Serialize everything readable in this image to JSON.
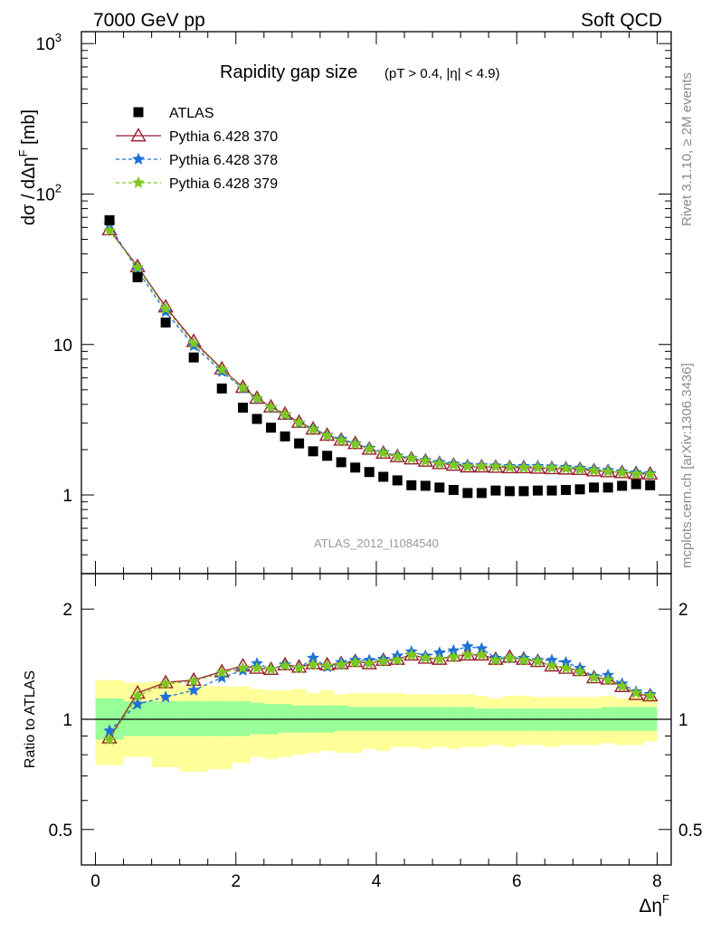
{
  "header": {
    "left": "7000 GeV pp",
    "right": "Soft QCD"
  },
  "side_labels": {
    "rivet": "Rivet 3.1.10, ≥ 2M events",
    "mcplots": "mcplots.cern.ch [arXiv:1306.3436]"
  },
  "chart_data": [
    {
      "type": "scatter",
      "title": "Rapidity gap size",
      "subtitle": "(pT > 0.4, |η| < 4.9)",
      "watermark": "ATLAS_2012_I1084540",
      "xlabel": "Δη",
      "xlabel_sup": "F",
      "ylabel": "dσ / dΔη",
      "ylabel_sup": "F",
      "ylabel_unit": " [mb]",
      "xlim": [
        -0.2,
        8.2
      ],
      "ylim": [
        0.3,
        1200
      ],
      "yscale": "log",
      "xticks": [
        "0",
        "2",
        "4",
        "6",
        "8"
      ],
      "yticks": [
        "1",
        "10"
      ],
      "yticks_pow": [
        {
          "base": "10",
          "exp": "2"
        },
        {
          "base": "10",
          "exp": "3"
        }
      ],
      "legend_position": "top-left",
      "grid": false,
      "x": [
        0.2,
        0.6,
        1.0,
        1.4,
        1.8,
        2.1,
        2.3,
        2.5,
        2.7,
        2.9,
        3.1,
        3.3,
        3.5,
        3.7,
        3.9,
        4.1,
        4.3,
        4.5,
        4.7,
        4.9,
        5.1,
        5.3,
        5.5,
        5.7,
        5.9,
        6.1,
        6.3,
        6.5,
        6.7,
        6.9,
        7.1,
        7.3,
        7.5,
        7.7,
        7.9
      ],
      "series": [
        {
          "name": "ATLAS",
          "color": "#000000",
          "marker": "square",
          "values": [
            67,
            28,
            14,
            8.2,
            5.1,
            3.8,
            3.2,
            2.8,
            2.45,
            2.2,
            1.95,
            1.82,
            1.65,
            1.52,
            1.42,
            1.32,
            1.25,
            1.16,
            1.15,
            1.12,
            1.08,
            1.03,
            1.03,
            1.07,
            1.06,
            1.06,
            1.07,
            1.07,
            1.08,
            1.09,
            1.12,
            1.12,
            1.15,
            1.18,
            1.16
          ]
        },
        {
          "name": "Pythia 6.428 370",
          "color": "#9b1b30",
          "marker": "triangle",
          "dash": "",
          "values": [
            58,
            33,
            17.8,
            10.5,
            6.9,
            5.2,
            4.4,
            3.85,
            3.45,
            3.05,
            2.75,
            2.5,
            2.32,
            2.2,
            2.02,
            1.9,
            1.8,
            1.74,
            1.68,
            1.62,
            1.58,
            1.54,
            1.54,
            1.53,
            1.52,
            1.52,
            1.51,
            1.5,
            1.49,
            1.48,
            1.45,
            1.43,
            1.41,
            1.39,
            1.38
          ]
        },
        {
          "name": "Pythia 6.428 378",
          "color": "#1f6fd6",
          "marker": "star",
          "dash": "4,3",
          "values": [
            62,
            31,
            16.5,
            9.8,
            6.6,
            5.1,
            4.35,
            3.8,
            3.4,
            3.0,
            2.75,
            2.5,
            2.35,
            2.2,
            2.05,
            1.92,
            1.82,
            1.76,
            1.7,
            1.65,
            1.61,
            1.58,
            1.57,
            1.56,
            1.55,
            1.55,
            1.55,
            1.54,
            1.53,
            1.51,
            1.48,
            1.46,
            1.43,
            1.41,
            1.39
          ]
        },
        {
          "name": "Pythia 6.428 379",
          "color": "#7ec820",
          "marker": "star",
          "dash": "4,3",
          "values": [
            57,
            32.5,
            17.3,
            10.2,
            6.8,
            5.15,
            4.38,
            3.82,
            3.42,
            3.02,
            2.72,
            2.48,
            2.3,
            2.18,
            2.02,
            1.9,
            1.8,
            1.75,
            1.68,
            1.62,
            1.58,
            1.55,
            1.55,
            1.54,
            1.53,
            1.52,
            1.52,
            1.51,
            1.5,
            1.48,
            1.45,
            1.43,
            1.41,
            1.38,
            1.37
          ]
        }
      ]
    },
    {
      "type": "scatter",
      "ylabel": "Ratio to ATLAS",
      "yscale": "log",
      "ylim": [
        0.4,
        2.5
      ],
      "xlim": [
        -0.2,
        8.2
      ],
      "yticks": [
        "0.5",
        "1",
        "2"
      ],
      "bands": {
        "inner_color": "#99ff99",
        "outer_color": "#ffff99",
        "inner_lo": [
          0.88,
          0.9,
          0.9,
          0.9,
          0.9,
          0.9,
          0.91,
          0.91,
          0.92,
          0.92,
          0.92,
          0.92,
          0.93,
          0.93,
          0.93,
          0.93,
          0.93,
          0.93,
          0.93,
          0.93,
          0.93,
          0.93,
          0.93,
          0.93,
          0.93,
          0.93,
          0.93,
          0.93,
          0.93,
          0.93,
          0.93,
          0.93,
          0.93,
          0.93,
          0.93
        ],
        "inner_hi": [
          1.14,
          1.12,
          1.12,
          1.12,
          1.12,
          1.12,
          1.11,
          1.1,
          1.1,
          1.09,
          1.09,
          1.09,
          1.09,
          1.08,
          1.08,
          1.08,
          1.08,
          1.08,
          1.08,
          1.08,
          1.08,
          1.08,
          1.07,
          1.07,
          1.07,
          1.07,
          1.07,
          1.07,
          1.07,
          1.07,
          1.07,
          1.08,
          1.08,
          1.08,
          1.08
        ],
        "outer_lo": [
          0.75,
          0.79,
          0.74,
          0.72,
          0.73,
          0.76,
          0.79,
          0.78,
          0.79,
          0.8,
          0.81,
          0.82,
          0.81,
          0.81,
          0.83,
          0.82,
          0.84,
          0.84,
          0.83,
          0.84,
          0.83,
          0.84,
          0.84,
          0.85,
          0.84,
          0.85,
          0.85,
          0.84,
          0.85,
          0.85,
          0.85,
          0.86,
          0.85,
          0.85,
          0.87
        ],
        "outer_hi": [
          1.28,
          1.26,
          1.27,
          1.24,
          1.23,
          1.23,
          1.21,
          1.2,
          1.2,
          1.21,
          1.18,
          1.2,
          1.17,
          1.18,
          1.18,
          1.18,
          1.18,
          1.17,
          1.17,
          1.17,
          1.17,
          1.17,
          1.16,
          1.14,
          1.16,
          1.16,
          1.15,
          1.15,
          1.15,
          1.15,
          1.15,
          1.16,
          1.14,
          1.15,
          1.14
        ]
      },
      "series": [
        {
          "name": "Pythia 6.428 370",
          "color": "#9b1b30",
          "marker": "triangle",
          "dash": "",
          "values": [
            0.89,
            1.18,
            1.26,
            1.28,
            1.35,
            1.4,
            1.38,
            1.37,
            1.41,
            1.39,
            1.42,
            1.41,
            1.42,
            1.44,
            1.42,
            1.45,
            1.46,
            1.5,
            1.47,
            1.46,
            1.49,
            1.5,
            1.5,
            1.46,
            1.48,
            1.46,
            1.44,
            1.4,
            1.38,
            1.36,
            1.3,
            1.29,
            1.23,
            1.17,
            1.16
          ]
        },
        {
          "name": "Pythia 6.428 378",
          "color": "#1f6fd6",
          "marker": "star",
          "dash": "4,3",
          "values": [
            0.93,
            1.1,
            1.15,
            1.2,
            1.3,
            1.36,
            1.42,
            1.37,
            1.41,
            1.38,
            1.47,
            1.39,
            1.43,
            1.45,
            1.45,
            1.46,
            1.49,
            1.53,
            1.49,
            1.52,
            1.54,
            1.58,
            1.56,
            1.47,
            1.47,
            1.47,
            1.45,
            1.45,
            1.43,
            1.38,
            1.31,
            1.32,
            1.25,
            1.19,
            1.17
          ]
        },
        {
          "name": "Pythia 6.428 379",
          "color": "#7ec820",
          "marker": "star",
          "dash": "4,3",
          "values": [
            0.88,
            1.16,
            1.25,
            1.27,
            1.34,
            1.38,
            1.38,
            1.37,
            1.4,
            1.38,
            1.41,
            1.4,
            1.41,
            1.43,
            1.42,
            1.44,
            1.45,
            1.5,
            1.47,
            1.46,
            1.48,
            1.5,
            1.5,
            1.45,
            1.47,
            1.45,
            1.44,
            1.4,
            1.38,
            1.35,
            1.3,
            1.28,
            1.23,
            1.18,
            1.16
          ]
        }
      ]
    }
  ]
}
